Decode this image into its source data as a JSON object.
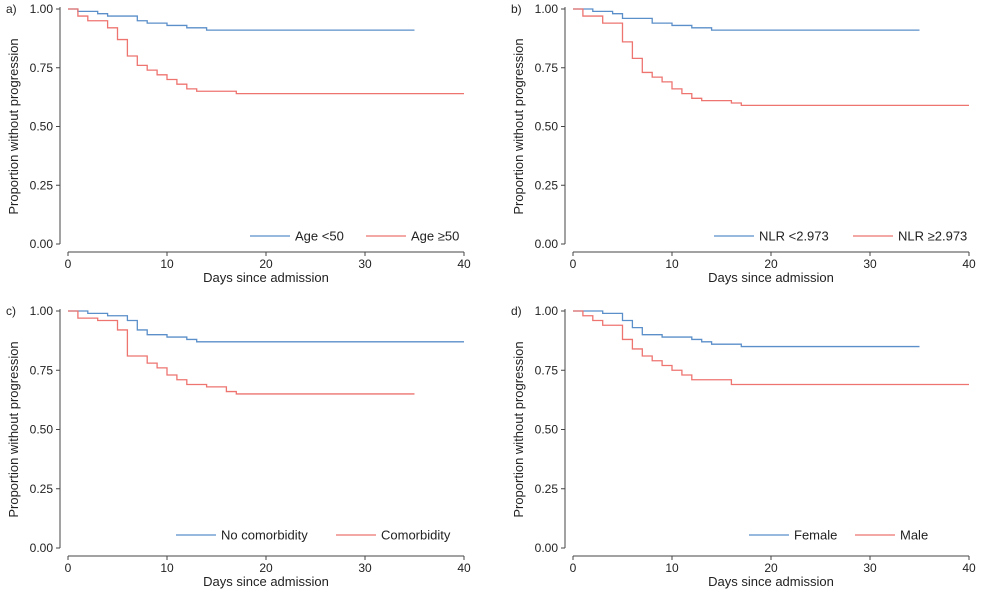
{
  "colors": {
    "series_a": "#5b8fc9",
    "series_b": "#ee7470",
    "axis": "#444444"
  },
  "chart_data": [
    {
      "panel": "a)",
      "type": "line",
      "step": true,
      "xlabel": "Days since admission",
      "ylabel": "Proportion without progression",
      "xlim": [
        0,
        40
      ],
      "ylim": [
        0,
        1
      ],
      "xticks": [
        "0",
        "10",
        "20",
        "30",
        "40"
      ],
      "yticks": [
        "0.00",
        "0.25",
        "0.50",
        "0.75",
        "1.00"
      ],
      "legend_position": "bottom-right",
      "series": [
        {
          "name": "Age <50",
          "color": "#5b8fc9",
          "x": [
            0,
            1,
            3,
            4,
            7,
            8,
            10,
            12,
            14,
            35
          ],
          "y": [
            1.0,
            0.99,
            0.98,
            0.97,
            0.95,
            0.94,
            0.93,
            0.92,
            0.91,
            0.91
          ]
        },
        {
          "name": "Age ≥50",
          "color": "#ee7470",
          "x": [
            0,
            1,
            2,
            4,
            5,
            6,
            7,
            8,
            9,
            10,
            11,
            12,
            13,
            17,
            40
          ],
          "y": [
            1.0,
            0.97,
            0.95,
            0.92,
            0.87,
            0.8,
            0.76,
            0.74,
            0.72,
            0.7,
            0.68,
            0.66,
            0.65,
            0.64,
            0.64
          ]
        }
      ]
    },
    {
      "panel": "b)",
      "type": "line",
      "step": true,
      "xlabel": "Days since admission",
      "ylabel": "Proportion without progression",
      "xlim": [
        0,
        40
      ],
      "ylim": [
        0,
        1
      ],
      "xticks": [
        "0",
        "10",
        "20",
        "30",
        "40"
      ],
      "yticks": [
        "0.00",
        "0.25",
        "0.50",
        "0.75",
        "1.00"
      ],
      "legend_position": "bottom-right",
      "series": [
        {
          "name": "NLR <2.973",
          "color": "#5b8fc9",
          "x": [
            0,
            2,
            4,
            5,
            8,
            10,
            12,
            14,
            35
          ],
          "y": [
            1.0,
            0.99,
            0.98,
            0.96,
            0.94,
            0.93,
            0.92,
            0.91,
            0.91
          ]
        },
        {
          "name": "NLR ≥2.973",
          "color": "#ee7470",
          "x": [
            0,
            1,
            3,
            5,
            6,
            7,
            8,
            9,
            10,
            11,
            12,
            13,
            16,
            17,
            40
          ],
          "y": [
            1.0,
            0.97,
            0.94,
            0.86,
            0.79,
            0.73,
            0.71,
            0.69,
            0.66,
            0.64,
            0.62,
            0.61,
            0.6,
            0.59,
            0.59
          ]
        }
      ]
    },
    {
      "panel": "c)",
      "type": "line",
      "step": true,
      "xlabel": "Days since admission",
      "ylabel": "Proportion without progression",
      "xlim": [
        0,
        40
      ],
      "ylim": [
        0,
        1
      ],
      "xticks": [
        "0",
        "10",
        "20",
        "30",
        "40"
      ],
      "yticks": [
        "0.00",
        "0.25",
        "0.50",
        "0.75",
        "1.00"
      ],
      "legend_position": "bottom-right",
      "series": [
        {
          "name": "No comorbidity",
          "color": "#5b8fc9",
          "x": [
            0,
            2,
            4,
            6,
            7,
            8,
            10,
            12,
            13,
            40
          ],
          "y": [
            1.0,
            0.99,
            0.98,
            0.96,
            0.92,
            0.9,
            0.89,
            0.88,
            0.87,
            0.87
          ]
        },
        {
          "name": "Comorbidity",
          "color": "#ee7470",
          "x": [
            0,
            1,
            3,
            5,
            6,
            8,
            9,
            10,
            11,
            12,
            14,
            16,
            17,
            35
          ],
          "y": [
            1.0,
            0.97,
            0.96,
            0.92,
            0.81,
            0.78,
            0.76,
            0.73,
            0.71,
            0.69,
            0.68,
            0.66,
            0.65,
            0.65
          ]
        }
      ]
    },
    {
      "panel": "d)",
      "type": "line",
      "step": true,
      "xlabel": "Days since admission",
      "ylabel": "Proportion without progression",
      "xlim": [
        0,
        40
      ],
      "ylim": [
        0,
        1
      ],
      "xticks": [
        "0",
        "10",
        "20",
        "30",
        "40"
      ],
      "yticks": [
        "0.00",
        "0.25",
        "0.50",
        "0.75",
        "1.00"
      ],
      "legend_position": "bottom-right",
      "series": [
        {
          "name": "Female",
          "color": "#5b8fc9",
          "x": [
            0,
            3,
            5,
            6,
            7,
            9,
            12,
            13,
            14,
            17,
            35
          ],
          "y": [
            1.0,
            0.99,
            0.96,
            0.93,
            0.9,
            0.89,
            0.88,
            0.87,
            0.86,
            0.85,
            0.85
          ]
        },
        {
          "name": "Male",
          "color": "#ee7470",
          "x": [
            0,
            1,
            2,
            3,
            5,
            6,
            7,
            8,
            9,
            10,
            11,
            12,
            16,
            40
          ],
          "y": [
            1.0,
            0.98,
            0.96,
            0.94,
            0.88,
            0.84,
            0.81,
            0.79,
            0.77,
            0.75,
            0.73,
            0.71,
            0.69,
            0.69
          ]
        }
      ]
    }
  ]
}
